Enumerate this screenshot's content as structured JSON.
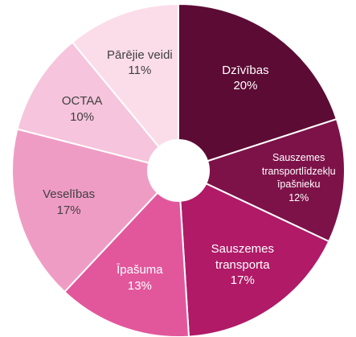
{
  "chart_data": {
    "type": "donut",
    "categories": [
      "Dzīvības",
      "Sauszemes\ntransportlīdzekļu\nīpašnieku",
      "Sauszemes\ntransporta",
      "Īpašuma",
      "Veselības",
      "OCTAA",
      "Pārējie veidi"
    ],
    "values": [
      20,
      12,
      17,
      13,
      17,
      10,
      11
    ],
    "value_labels": [
      "20%",
      "12%",
      "17%",
      "13%",
      "17%",
      "10%",
      "11%"
    ],
    "colors": [
      "#5c0b34",
      "#7d1249",
      "#b01a67",
      "#e2579c",
      "#ef9cc5",
      "#f6c4dc",
      "#fbdde9"
    ]
  }
}
